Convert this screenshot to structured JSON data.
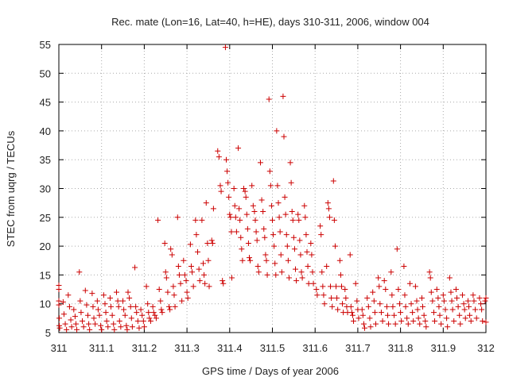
{
  "chart_data": {
    "type": "scatter",
    "title": "Rec. mate (Lon=16, Lat=40, h=HE), days 310-311, 2006, window 004",
    "xlabel": "GPS time / Days of year 2006",
    "ylabel": "STEC from uqrg / TECUs",
    "xlim": [
      311,
      312
    ],
    "ylim": [
      5,
      55
    ],
    "x_ticks": [
      "311",
      "311.1",
      "311.2",
      "311.3",
      "311.4",
      "311.5",
      "311.6",
      "311.7",
      "311.8",
      "311.9",
      "312"
    ],
    "y_ticks": [
      "5",
      "10",
      "15",
      "20",
      "25",
      "30",
      "35",
      "40",
      "45",
      "50",
      "55"
    ],
    "grid": true,
    "marker": "plus",
    "color": "#cc0000",
    "points": [
      [
        311.0,
        13.2
      ],
      [
        311.0,
        12.5
      ],
      [
        311.0,
        10.5
      ],
      [
        311.0,
        9.8
      ],
      [
        311.001,
        7.5
      ],
      [
        311.001,
        6.2
      ],
      [
        311.002,
        5.8
      ],
      [
        311.01,
        10.3
      ],
      [
        311.012,
        8.2
      ],
      [
        311.015,
        6.5
      ],
      [
        311.018,
        5.5
      ],
      [
        311.022,
        11.5
      ],
      [
        311.025,
        9.5
      ],
      [
        311.028,
        7.2
      ],
      [
        311.03,
        6.0
      ],
      [
        311.035,
        9.0
      ],
      [
        311.038,
        7.8
      ],
      [
        311.04,
        6.5
      ],
      [
        311.042,
        5.5
      ],
      [
        311.048,
        15.5
      ],
      [
        311.05,
        10.5
      ],
      [
        311.052,
        8.5
      ],
      [
        311.055,
        7.0
      ],
      [
        311.058,
        6.0
      ],
      [
        311.062,
        12.3
      ],
      [
        311.065,
        9.8
      ],
      [
        311.068,
        8.0
      ],
      [
        311.07,
        6.5
      ],
      [
        311.072,
        5.5
      ],
      [
        311.078,
        11.8
      ],
      [
        311.08,
        9.5
      ],
      [
        311.082,
        7.5
      ],
      [
        311.085,
        6.5
      ],
      [
        311.09,
        10.5
      ],
      [
        311.092,
        9.0
      ],
      [
        311.095,
        8.0
      ],
      [
        311.098,
        6.2
      ],
      [
        311.1,
        5.5
      ],
      [
        311.105,
        11.5
      ],
      [
        311.108,
        10.0
      ],
      [
        311.11,
        8.5
      ],
      [
        311.112,
        7.0
      ],
      [
        311.115,
        6.0
      ],
      [
        311.12,
        11.0
      ],
      [
        311.122,
        9.5
      ],
      [
        311.125,
        8.0
      ],
      [
        311.128,
        6.5
      ],
      [
        311.13,
        5.5
      ],
      [
        311.135,
        12.0
      ],
      [
        311.138,
        10.5
      ],
      [
        311.14,
        9.5
      ],
      [
        311.142,
        7.0
      ],
      [
        311.145,
        6.0
      ],
      [
        311.15,
        10.5
      ],
      [
        311.152,
        9.0
      ],
      [
        311.155,
        8.0
      ],
      [
        311.158,
        6.2
      ],
      [
        311.16,
        5.5
      ],
      [
        311.162,
        12.0
      ],
      [
        311.165,
        11.0
      ],
      [
        311.168,
        9.5
      ],
      [
        311.17,
        7.5
      ],
      [
        311.172,
        6.0
      ],
      [
        311.178,
        16.3
      ],
      [
        311.18,
        9.5
      ],
      [
        311.182,
        8.5
      ],
      [
        311.185,
        7.0
      ],
      [
        311.188,
        5.8
      ],
      [
        311.192,
        9.0
      ],
      [
        311.195,
        8.0
      ],
      [
        311.198,
        7.0
      ],
      [
        311.2,
        6.0
      ],
      [
        311.205,
        13.0
      ],
      [
        311.208,
        10.0
      ],
      [
        311.21,
        8.5
      ],
      [
        311.212,
        7.5
      ],
      [
        311.215,
        7.0
      ],
      [
        311.22,
        9.5
      ],
      [
        311.222,
        8.5
      ],
      [
        311.225,
        8.0
      ],
      [
        311.228,
        7.5
      ],
      [
        311.232,
        24.5
      ],
      [
        311.235,
        12.5
      ],
      [
        311.238,
        10.5
      ],
      [
        311.24,
        9.0
      ],
      [
        311.242,
        8.5
      ],
      [
        311.248,
        20.5
      ],
      [
        311.25,
        15.5
      ],
      [
        311.252,
        14.5
      ],
      [
        311.255,
        12.0
      ],
      [
        311.258,
        9.5
      ],
      [
        311.26,
        9.0
      ],
      [
        311.262,
        19.5
      ],
      [
        311.265,
        18.5
      ],
      [
        311.268,
        13.0
      ],
      [
        311.27,
        11.5
      ],
      [
        311.272,
        9.5
      ],
      [
        311.278,
        25.0
      ],
      [
        311.28,
        16.5
      ],
      [
        311.282,
        15.0
      ],
      [
        311.285,
        13.5
      ],
      [
        311.288,
        10.5
      ],
      [
        311.292,
        17.5
      ],
      [
        311.295,
        15.0
      ],
      [
        311.298,
        14.0
      ],
      [
        311.3,
        12.0
      ],
      [
        311.302,
        11.0
      ],
      [
        311.308,
        20.3
      ],
      [
        311.31,
        16.5
      ],
      [
        311.312,
        15.5
      ],
      [
        311.315,
        13.0
      ],
      [
        311.32,
        24.5
      ],
      [
        311.322,
        22.0
      ],
      [
        311.325,
        19.0
      ],
      [
        311.328,
        16.0
      ],
      [
        311.33,
        14.0
      ],
      [
        311.335,
        24.5
      ],
      [
        311.338,
        17.0
      ],
      [
        311.34,
        15.0
      ],
      [
        311.342,
        13.5
      ],
      [
        311.345,
        27.5
      ],
      [
        311.348,
        20.5
      ],
      [
        311.35,
        17.5
      ],
      [
        311.352,
        13.0
      ],
      [
        311.358,
        21.0
      ],
      [
        311.36,
        20.5
      ],
      [
        311.362,
        26.5
      ],
      [
        311.372,
        36.5
      ],
      [
        311.375,
        35.5
      ],
      [
        311.378,
        30.5
      ],
      [
        311.38,
        29.5
      ],
      [
        311.383,
        14.0
      ],
      [
        311.385,
        13.5
      ],
      [
        311.39,
        54.5
      ],
      [
        311.392,
        35.0
      ],
      [
        311.394,
        33.0
      ],
      [
        311.396,
        31.0
      ],
      [
        311.398,
        28.5
      ],
      [
        311.4,
        25.5
      ],
      [
        311.402,
        25.0
      ],
      [
        311.404,
        22.5
      ],
      [
        311.405,
        14.5
      ],
      [
        311.41,
        30.0
      ],
      [
        311.412,
        27.0
      ],
      [
        311.414,
        25.0
      ],
      [
        311.416,
        22.5
      ],
      [
        311.42,
        37.0
      ],
      [
        311.422,
        26.5
      ],
      [
        311.424,
        24.5
      ],
      [
        311.426,
        21.5
      ],
      [
        311.428,
        19.5
      ],
      [
        311.43,
        17.5
      ],
      [
        311.433,
        30.0
      ],
      [
        311.436,
        29.5
      ],
      [
        311.438,
        28.5
      ],
      [
        311.44,
        25.5
      ],
      [
        311.442,
        23.0
      ],
      [
        311.444,
        20.5
      ],
      [
        311.446,
        18.0
      ],
      [
        311.448,
        17.5
      ],
      [
        311.452,
        30.5
      ],
      [
        311.455,
        27.0
      ],
      [
        311.458,
        26.0
      ],
      [
        311.46,
        24.5
      ],
      [
        311.462,
        22.5
      ],
      [
        311.464,
        21.0
      ],
      [
        311.466,
        16.5
      ],
      [
        311.468,
        15.5
      ],
      [
        311.472,
        34.5
      ],
      [
        311.475,
        28.0
      ],
      [
        311.478,
        26.0
      ],
      [
        311.48,
        23.0
      ],
      [
        311.482,
        21.5
      ],
      [
        311.484,
        18.5
      ],
      [
        311.486,
        17.5
      ],
      [
        311.488,
        15.0
      ],
      [
        311.492,
        45.5
      ],
      [
        311.494,
        33.0
      ],
      [
        311.496,
        30.5
      ],
      [
        311.498,
        27.0
      ],
      [
        311.5,
        24.5
      ],
      [
        311.502,
        22.0
      ],
      [
        311.504,
        20.0
      ],
      [
        311.506,
        17.0
      ],
      [
        311.508,
        15.0
      ],
      [
        311.51,
        40.0
      ],
      [
        311.512,
        30.5
      ],
      [
        311.514,
        27.5
      ],
      [
        311.516,
        25.0
      ],
      [
        311.518,
        22.5
      ],
      [
        311.52,
        18.5
      ],
      [
        311.522,
        15.5
      ],
      [
        311.525,
        46.0
      ],
      [
        311.527,
        39.0
      ],
      [
        311.529,
        28.5
      ],
      [
        311.531,
        25.5
      ],
      [
        311.533,
        22.0
      ],
      [
        311.535,
        20.0
      ],
      [
        311.537,
        17.5
      ],
      [
        311.539,
        14.5
      ],
      [
        311.542,
        34.5
      ],
      [
        311.544,
        31.0
      ],
      [
        311.546,
        26.0
      ],
      [
        311.548,
        24.5
      ],
      [
        311.55,
        21.5
      ],
      [
        311.552,
        19.5
      ],
      [
        311.554,
        16.0
      ],
      [
        311.556,
        14.0
      ],
      [
        311.56,
        25.5
      ],
      [
        311.562,
        24.5
      ],
      [
        311.564,
        21.0
      ],
      [
        311.566,
        18.5
      ],
      [
        311.568,
        15.5
      ],
      [
        311.57,
        14.5
      ],
      [
        311.575,
        27.0
      ],
      [
        311.577,
        25.0
      ],
      [
        311.579,
        22.0
      ],
      [
        311.581,
        19.0
      ],
      [
        311.583,
        16.5
      ],
      [
        311.585,
        13.5
      ],
      [
        311.59,
        20.5
      ],
      [
        311.592,
        18.5
      ],
      [
        311.594,
        15.5
      ],
      [
        311.596,
        13.5
      ],
      [
        311.603,
        12.5
      ],
      [
        311.605,
        11.5
      ],
      [
        311.612,
        23.5
      ],
      [
        311.614,
        22.0
      ],
      [
        311.616,
        15.5
      ],
      [
        311.618,
        13.0
      ],
      [
        311.62,
        11.5
      ],
      [
        311.622,
        10.0
      ],
      [
        311.627,
        16.5
      ],
      [
        311.63,
        27.5
      ],
      [
        311.632,
        26.5
      ],
      [
        311.634,
        25.0
      ],
      [
        311.636,
        13.0
      ],
      [
        311.638,
        11.0
      ],
      [
        311.64,
        9.5
      ],
      [
        311.643,
        31.3
      ],
      [
        311.645,
        24.5
      ],
      [
        311.647,
        20.0
      ],
      [
        311.649,
        13.0
      ],
      [
        311.651,
        11.0
      ],
      [
        311.653,
        9.0
      ],
      [
        311.658,
        17.5
      ],
      [
        311.66,
        15.0
      ],
      [
        311.662,
        13.0
      ],
      [
        311.664,
        10.0
      ],
      [
        311.666,
        8.5
      ],
      [
        311.67,
        12.5
      ],
      [
        311.672,
        11.0
      ],
      [
        311.674,
        9.5
      ],
      [
        311.676,
        8.5
      ],
      [
        311.682,
        18.5
      ],
      [
        311.684,
        9.5
      ],
      [
        311.686,
        8.5
      ],
      [
        311.688,
        8.0
      ],
      [
        311.69,
        7.0
      ],
      [
        311.695,
        13.5
      ],
      [
        311.698,
        10.5
      ],
      [
        311.7,
        9.0
      ],
      [
        311.702,
        7.5
      ],
      [
        311.71,
        9.0
      ],
      [
        311.712,
        8.0
      ],
      [
        311.714,
        6.5
      ],
      [
        311.716,
        5.8
      ],
      [
        311.722,
        11.0
      ],
      [
        311.725,
        9.5
      ],
      [
        311.728,
        7.5
      ],
      [
        311.73,
        6.0
      ],
      [
        311.735,
        12.0
      ],
      [
        311.738,
        10.5
      ],
      [
        311.74,
        8.5
      ],
      [
        311.742,
        6.5
      ],
      [
        311.748,
        14.5
      ],
      [
        311.75,
        13.0
      ],
      [
        311.752,
        10.0
      ],
      [
        311.755,
        8.5
      ],
      [
        311.758,
        7.0
      ],
      [
        311.762,
        14.0
      ],
      [
        311.765,
        12.5
      ],
      [
        311.768,
        9.5
      ],
      [
        311.77,
        8.0
      ],
      [
        311.772,
        6.5
      ],
      [
        311.778,
        15.5
      ],
      [
        311.78,
        11.5
      ],
      [
        311.782,
        9.5
      ],
      [
        311.785,
        8.0
      ],
      [
        311.788,
        6.5
      ],
      [
        311.792,
        19.5
      ],
      [
        311.795,
        12.5
      ],
      [
        311.798,
        10.0
      ],
      [
        311.8,
        8.5
      ],
      [
        311.802,
        7.0
      ],
      [
        311.808,
        16.5
      ],
      [
        311.81,
        11.5
      ],
      [
        311.812,
        9.5
      ],
      [
        311.815,
        7.5
      ],
      [
        311.818,
        6.5
      ],
      [
        311.822,
        13.5
      ],
      [
        311.825,
        10.0
      ],
      [
        311.828,
        8.5
      ],
      [
        311.83,
        7.0
      ],
      [
        311.835,
        13.0
      ],
      [
        311.838,
        10.5
      ],
      [
        311.84,
        9.0
      ],
      [
        311.842,
        7.5
      ],
      [
        311.845,
        6.5
      ],
      [
        311.85,
        11.0
      ],
      [
        311.852,
        9.5
      ],
      [
        311.855,
        8.0
      ],
      [
        311.858,
        7.0
      ],
      [
        311.86,
        6.0
      ],
      [
        311.868,
        15.5
      ],
      [
        311.87,
        14.5
      ],
      [
        311.872,
        12.0
      ],
      [
        311.875,
        10.5
      ],
      [
        311.878,
        8.5
      ],
      [
        311.88,
        7.0
      ],
      [
        311.885,
        12.5
      ],
      [
        311.888,
        11.0
      ],
      [
        311.89,
        9.5
      ],
      [
        311.892,
        8.0
      ],
      [
        311.895,
        6.5
      ],
      [
        311.9,
        11.5
      ],
      [
        311.902,
        10.5
      ],
      [
        311.905,
        9.0
      ],
      [
        311.908,
        7.5
      ],
      [
        311.91,
        6.0
      ],
      [
        311.915,
        14.5
      ],
      [
        311.918,
        12.0
      ],
      [
        311.92,
        10.5
      ],
      [
        311.922,
        9.0
      ],
      [
        311.925,
        7.0
      ],
      [
        311.93,
        12.5
      ],
      [
        311.932,
        11.0
      ],
      [
        311.935,
        9.5
      ],
      [
        311.938,
        8.0
      ],
      [
        311.94,
        6.5
      ],
      [
        311.945,
        11.5
      ],
      [
        311.948,
        10.0
      ],
      [
        311.95,
        9.0
      ],
      [
        311.952,
        7.5
      ],
      [
        311.958,
        10.5
      ],
      [
        311.96,
        9.5
      ],
      [
        311.962,
        8.0
      ],
      [
        311.965,
        7.0
      ],
      [
        311.97,
        11.5
      ],
      [
        311.972,
        10.5
      ],
      [
        311.975,
        9.0
      ],
      [
        311.978,
        7.5
      ],
      [
        311.985,
        11.0
      ],
      [
        311.988,
        10.0
      ],
      [
        311.99,
        9.0
      ],
      [
        311.992,
        7.0
      ],
      [
        311.998,
        10.5
      ],
      [
        312.0,
        11.0
      ],
      [
        312.0,
        6.8
      ]
    ]
  }
}
